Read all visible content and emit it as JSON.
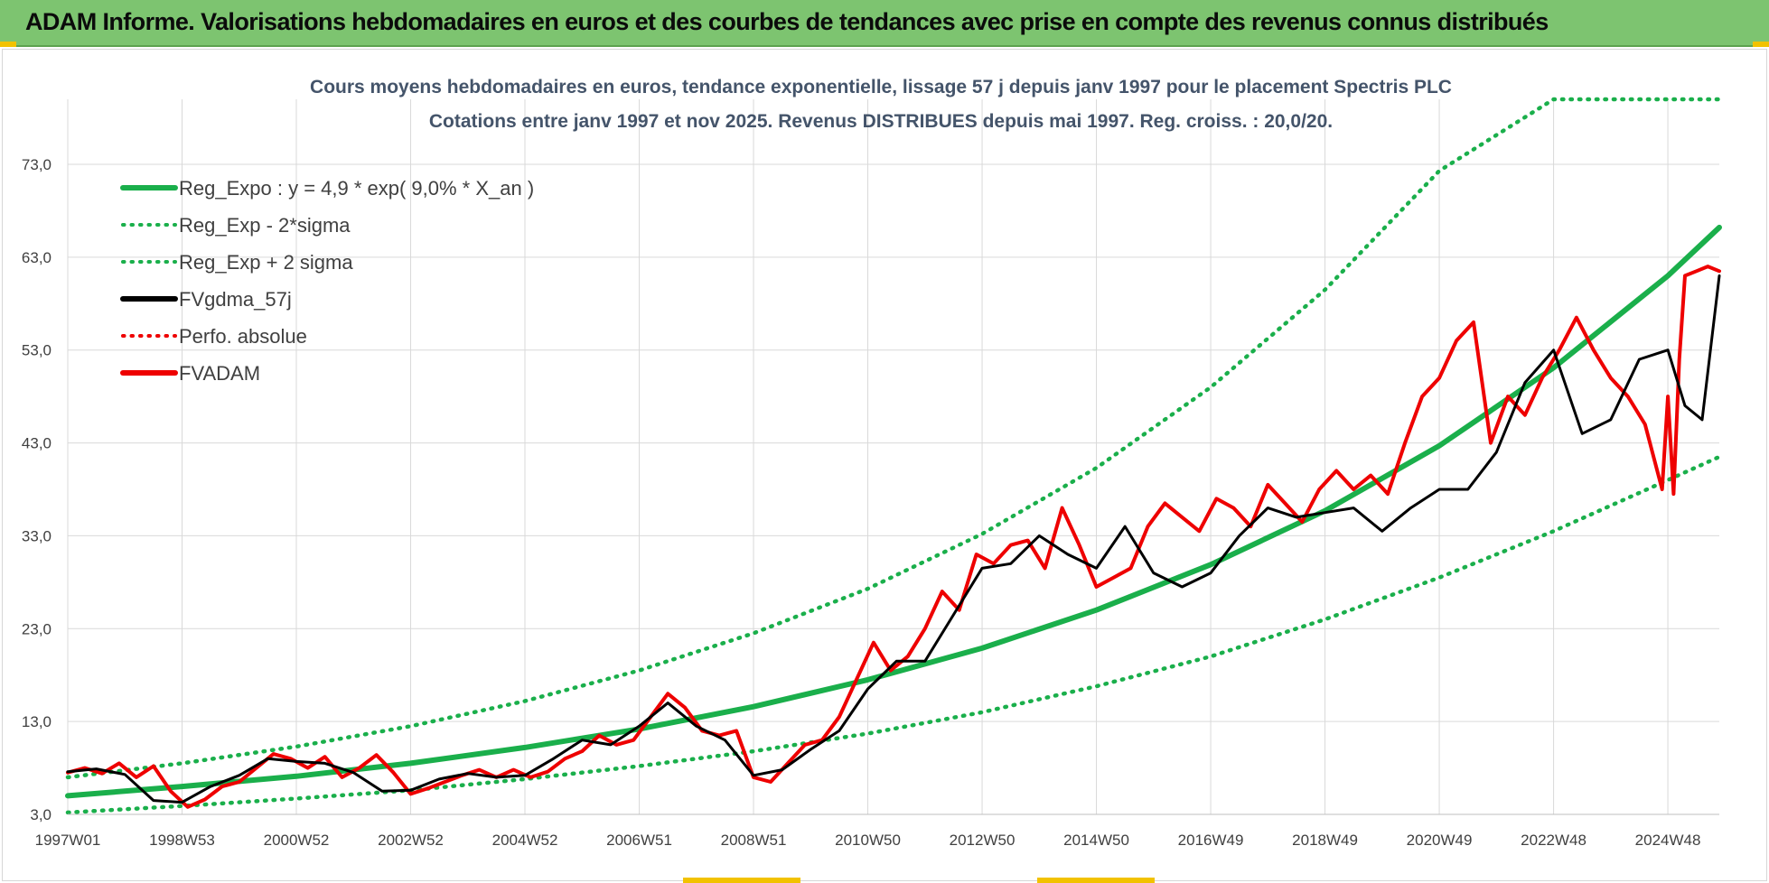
{
  "header": {
    "title": "ADAM Informe. Valorisations hebdomadaires en euros et des courbes de tendances avec prise en compte des revenus connus distribués"
  },
  "colors": {
    "banner": "#7dc470",
    "accent_yellow": "#f2c200",
    "reg_green": "#1aaf4b",
    "smooth_black": "#000000",
    "price_red": "#ee0000",
    "grid": "#d9d9d9"
  },
  "chart_data": {
    "type": "line",
    "title": "Cours moyens hebdomadaires en euros, tendance exponentielle, lissage 57 j depuis janv 1997 pour le placement Spectris PLC",
    "subtitle": "Cotations entre janv 1997 et nov 2025. Revenus DISTRIBUES depuis mai 1997.  Reg. croiss. : 20,0/20.",
    "xlabel": "",
    "ylabel": "",
    "ylim": [
      3,
      80
    ],
    "xlim": [
      1997.0,
      2025.9
    ],
    "grid": true,
    "legend_position": "top-left",
    "y_ticks": [
      "3,0",
      "13,0",
      "23,0",
      "33,0",
      "43,0",
      "53,0",
      "63,0",
      "73,0"
    ],
    "y_tick_values": [
      3,
      13,
      23,
      33,
      43,
      53,
      63,
      73
    ],
    "x_ticks": [
      "1997W01",
      "1998W53",
      "2000W52",
      "2002W52",
      "2004W52",
      "2006W51",
      "2008W51",
      "2010W50",
      "2012W50",
      "2014W50",
      "2016W49",
      "2018W49",
      "2020W49",
      "2022W48",
      "2024W48"
    ],
    "x_tick_values": [
      1997.0,
      1999.0,
      2001.0,
      2003.0,
      2005.0,
      2007.0,
      2009.0,
      2011.0,
      2013.0,
      2015.0,
      2017.0,
      2019.0,
      2021.0,
      2023.0,
      2025.0
    ],
    "series": [
      {
        "name": "Reg_Expo : y = 4,9 * exp( 9,0% *  X_an )",
        "style": "solid",
        "color": "#1aaf4b",
        "x": [
          1997.0,
          1999.0,
          2001.0,
          2003.0,
          2005.0,
          2007.0,
          2009.0,
          2011.0,
          2013.0,
          2015.0,
          2017.0,
          2019.0,
          2021.0,
          2023.0,
          2025.0,
          2025.9
        ],
        "values": [
          5.0,
          6.0,
          7.1,
          8.5,
          10.2,
          12.2,
          14.6,
          17.5,
          20.9,
          25.0,
          29.9,
          35.7,
          42.7,
          51.1,
          61.0,
          66.2
        ]
      },
      {
        "name": "Reg_Exp - 2*sigma",
        "style": "dotted",
        "color": "#1aaf4b",
        "x": [
          1997.0,
          1999.0,
          2001.0,
          2003.0,
          2005.0,
          2007.0,
          2009.0,
          2011.0,
          2013.0,
          2015.0,
          2017.0,
          2019.0,
          2021.0,
          2023.0,
          2025.0,
          2025.9
        ],
        "values": [
          3.2,
          3.9,
          4.7,
          5.6,
          6.8,
          8.2,
          9.8,
          11.7,
          14.0,
          16.8,
          20.0,
          24.0,
          28.5,
          33.5,
          39.0,
          41.5
        ]
      },
      {
        "name": "Reg_Exp + 2 sigma",
        "style": "dotted",
        "color": "#1aaf4b",
        "x": [
          1997.0,
          1999.0,
          2001.0,
          2003.0,
          2005.0,
          2007.0,
          2009.0,
          2011.0,
          2013.0,
          2015.0,
          2017.0,
          2019.0,
          2021.0,
          2023.0,
          2023.01,
          2025.9
        ],
        "values": [
          7.0,
          8.5,
          10.3,
          12.5,
          15.2,
          18.5,
          22.5,
          27.3,
          33.2,
          40.3,
          49.0,
          59.5,
          72.3,
          80.0,
          80.0,
          80.0
        ]
      },
      {
        "name": "FVgdma_57j",
        "style": "solid",
        "color": "#000000",
        "x": [
          1997.0,
          1997.5,
          1998.0,
          1998.5,
          1999.0,
          1999.5,
          2000.0,
          2000.5,
          2001.0,
          2001.5,
          2002.0,
          2002.5,
          2003.0,
          2003.5,
          2004.0,
          2004.5,
          2005.0,
          2005.5,
          2006.0,
          2006.5,
          2007.0,
          2007.5,
          2008.0,
          2008.5,
          2009.0,
          2009.5,
          2010.0,
          2010.5,
          2011.0,
          2011.5,
          2012.0,
          2012.5,
          2013.0,
          2013.5,
          2014.0,
          2014.5,
          2015.0,
          2015.5,
          2016.0,
          2016.5,
          2017.0,
          2017.5,
          2018.0,
          2018.5,
          2019.0,
          2019.5,
          2020.0,
          2020.5,
          2021.0,
          2021.5,
          2022.0,
          2022.5,
          2023.0,
          2023.5,
          2024.0,
          2024.5,
          2025.0,
          2025.3,
          2025.6,
          2025.9
        ],
        "values": [
          7.6,
          7.9,
          7.3,
          4.5,
          4.3,
          6.0,
          7.2,
          9.0,
          8.7,
          8.5,
          7.5,
          5.5,
          5.6,
          6.8,
          7.4,
          7.0,
          7.2,
          9.0,
          11.0,
          10.5,
          12.5,
          15.0,
          12.5,
          11.0,
          7.2,
          7.8,
          10.0,
          12.0,
          16.5,
          19.5,
          19.5,
          24.5,
          29.5,
          30.0,
          33.0,
          31.0,
          29.5,
          34.0,
          29.0,
          27.5,
          29.0,
          33.0,
          36.0,
          35.0,
          35.5,
          36.0,
          33.5,
          36.0,
          38.0,
          38.0,
          42.0,
          49.5,
          53.0,
          44.0,
          45.5,
          52.0,
          53.0,
          47.0,
          45.5,
          61.0
        ]
      },
      {
        "name": "Perfo. absolue",
        "style": "dotted",
        "color": "#ee0000",
        "x": [],
        "values": []
      },
      {
        "name": "FVADAM",
        "style": "solid",
        "color": "#ee0000",
        "x": [
          1997.0,
          1997.3,
          1997.6,
          1997.9,
          1998.2,
          1998.5,
          1998.8,
          1999.1,
          1999.4,
          1999.7,
          2000.0,
          2000.3,
          2000.6,
          2000.9,
          2001.2,
          2001.5,
          2001.8,
          2002.1,
          2002.4,
          2002.7,
          2003.0,
          2003.3,
          2003.6,
          2003.9,
          2004.2,
          2004.5,
          2004.8,
          2005.1,
          2005.4,
          2005.7,
          2006.0,
          2006.3,
          2006.6,
          2006.9,
          2007.2,
          2007.5,
          2007.8,
          2008.1,
          2008.4,
          2008.7,
          2009.0,
          2009.3,
          2009.6,
          2009.9,
          2010.2,
          2010.5,
          2010.8,
          2011.1,
          2011.4,
          2011.7,
          2012.0,
          2012.3,
          2012.6,
          2012.9,
          2013.2,
          2013.5,
          2013.8,
          2014.1,
          2014.4,
          2014.7,
          2015.0,
          2015.3,
          2015.6,
          2015.9,
          2016.2,
          2016.5,
          2016.8,
          2017.1,
          2017.4,
          2017.7,
          2018.0,
          2018.3,
          2018.6,
          2018.9,
          2019.2,
          2019.5,
          2019.8,
          2020.1,
          2020.4,
          2020.7,
          2021.0,
          2021.3,
          2021.6,
          2021.9,
          2022.2,
          2022.5,
          2022.8,
          2023.1,
          2023.4,
          2023.7,
          2024.0,
          2024.3,
          2024.6,
          2024.9,
          2025.0,
          2025.1,
          2025.2,
          2025.3,
          2025.5,
          2025.7,
          2025.9
        ],
        "values": [
          7.5,
          8.0,
          7.4,
          8.5,
          7.0,
          8.2,
          5.5,
          3.8,
          4.6,
          6.0,
          6.5,
          8.0,
          9.5,
          9.0,
          8.0,
          9.2,
          7.0,
          8.0,
          9.4,
          7.5,
          5.2,
          5.8,
          6.5,
          7.2,
          7.8,
          7.0,
          7.8,
          7.0,
          7.6,
          9.0,
          9.8,
          11.5,
          10.5,
          11.0,
          13.5,
          16.0,
          14.5,
          12.0,
          11.5,
          12.0,
          7.0,
          6.5,
          8.5,
          10.5,
          11.0,
          13.5,
          17.5,
          21.5,
          18.5,
          20.0,
          23.0,
          27.0,
          25.0,
          31.0,
          30.0,
          32.0,
          32.5,
          29.5,
          36.0,
          32.0,
          27.5,
          28.5,
          29.5,
          34.0,
          36.5,
          35.0,
          33.5,
          37.0,
          36.0,
          34.0,
          38.5,
          36.5,
          34.5,
          38.0,
          40.0,
          38.0,
          39.5,
          37.5,
          43.0,
          48.0,
          50.0,
          54.0,
          56.0,
          43.0,
          48.0,
          46.0,
          50.0,
          53.0,
          56.5,
          53.0,
          50.0,
          48.0,
          45.0,
          38.0,
          48.0,
          37.5,
          52.0,
          61.0,
          61.5,
          62.0,
          61.5
        ]
      }
    ]
  }
}
